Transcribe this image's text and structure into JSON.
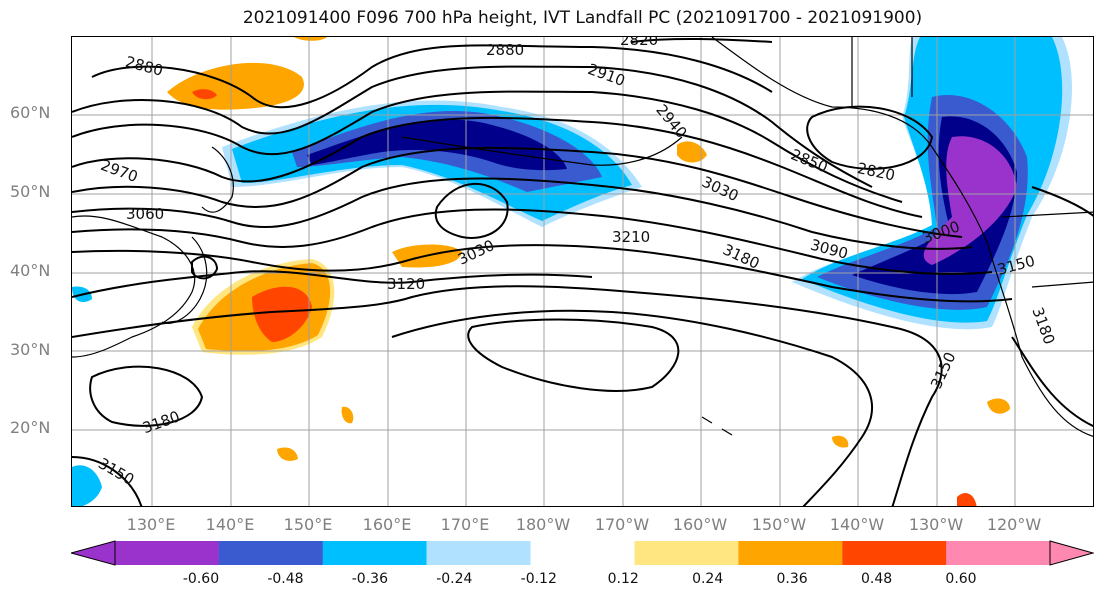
{
  "title": "2021091400 F096 700 hPa height, IVT Landfall PC (2021091700 - 2021091900)",
  "lat_labels": [
    "60°N",
    "50°N",
    "40°N",
    "30°N",
    "20°N"
  ],
  "lon_labels": [
    "130°E",
    "140°E",
    "150°E",
    "160°E",
    "170°E",
    "180°W",
    "170°W",
    "160°W",
    "150°W",
    "140°W",
    "130°W",
    "120°W"
  ],
  "contour_labels": [
    "2880",
    "2880",
    "2820",
    "2910",
    "2940",
    "2970",
    "3060",
    "2850",
    "2820",
    "3030",
    "3000",
    "3030",
    "3210",
    "3180",
    "3090",
    "3150",
    "3120",
    "3150",
    "3180",
    "3180",
    "3150"
  ],
  "colorbar": {
    "ticks": [
      "-0.60",
      "-0.48",
      "-0.36",
      "-0.24",
      "-0.12",
      "0.12",
      "0.24",
      "0.36",
      "0.48",
      "0.60"
    ],
    "colors": [
      "#9933cc",
      "#00008b",
      "#3a5ad0",
      "#00bfff",
      "#b0e2ff",
      "#ffffff",
      "#ffe680",
      "#ffa500",
      "#ff4500",
      "#b22222",
      "#ff88b0"
    ]
  }
}
